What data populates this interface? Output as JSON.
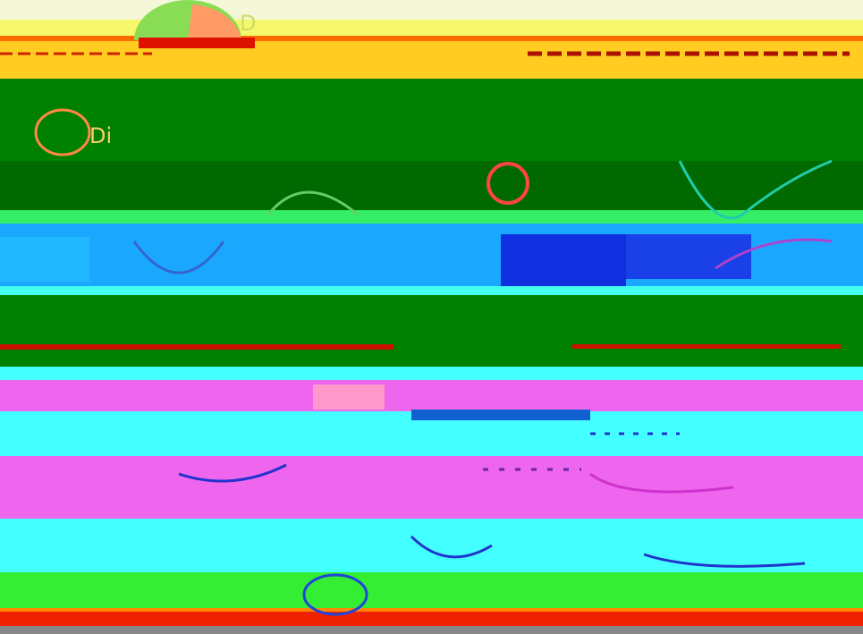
{
  "header": {
    "mark": "D"
  },
  "banner": {
    "text": "Di"
  }
}
